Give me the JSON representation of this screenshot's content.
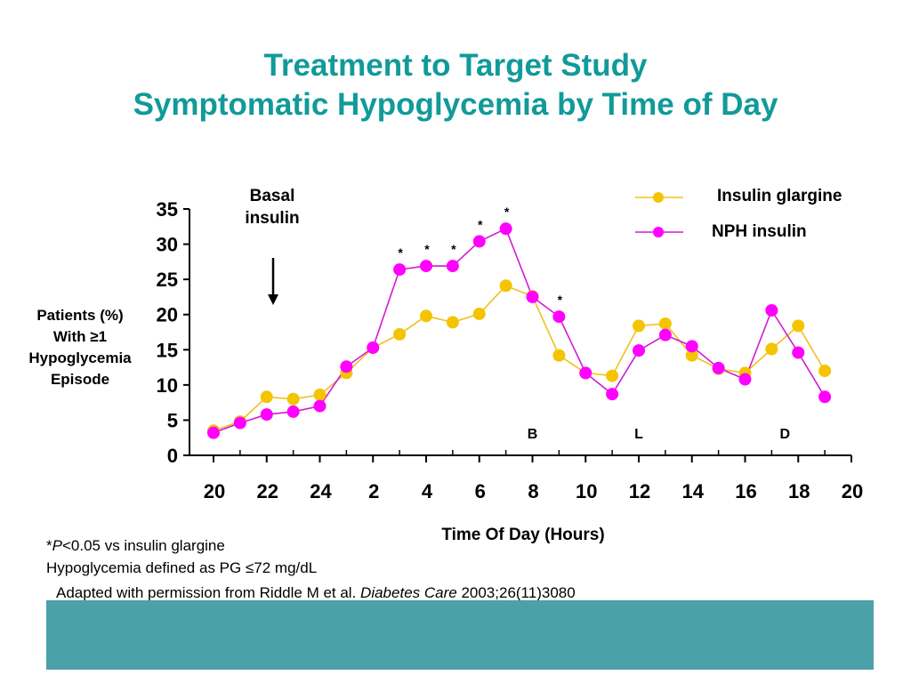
{
  "title_lines": [
    "Treatment to Target Study",
    "Symptomatic Hypoglycemia by Time of Day"
  ],
  "annotation_basal": [
    "Basal",
    "insulin"
  ],
  "footnotes": {
    "pvalue_star": "*",
    "pvalue_p": "P",
    "pvalue_rest": "<0.05 vs insulin glargine",
    "defined": "Hypoglycemia defined as PG ≤72 mg/dL",
    "source_pre": "Adapted with permission from Riddle M et al. ",
    "source_journal": "Diabetes Care",
    "source_post": " 2003;26(11)3080"
  },
  "colors": {
    "title": "#119a9a",
    "glargine": "#f5c400",
    "glargine_line": "#f0c020",
    "nph": "#ff00ff",
    "nph_line": "#d21bd2",
    "band": "#4aa1a8"
  },
  "chart_data": {
    "type": "line",
    "xlabel": "Time Of Day (Hours)",
    "ylabel_lines": [
      "Patients (%)",
      "With ≥1",
      "Hypoglycemia",
      "Episode"
    ],
    "ylim": [
      0,
      35
    ],
    "yticks": [
      "0",
      "5",
      "10",
      "15",
      "20",
      "25",
      "30",
      "35"
    ],
    "xtick_labels": [
      "20",
      "22",
      "24",
      "2",
      "4",
      "6",
      "8",
      "10",
      "12",
      "14",
      "16",
      "18",
      "20"
    ],
    "x_hours_start": 20,
    "x_hours_end": 44,
    "grid": false,
    "legend_position": "top-right",
    "meal_markers": [
      {
        "label": "B",
        "x": 32
      },
      {
        "label": "L",
        "x": 36
      },
      {
        "label": "D",
        "x": 41.5
      }
    ],
    "series": [
      {
        "name": "Insulin glargine",
        "color": "#f5c400",
        "x": [
          20,
          21,
          22,
          23,
          24,
          25,
          26,
          27,
          28,
          29,
          30,
          31,
          32,
          33,
          34,
          35,
          36,
          37,
          38,
          39,
          40,
          41,
          42,
          43
        ],
        "y": [
          3.5,
          4.8,
          8.3,
          8.0,
          8.6,
          11.7,
          15.3,
          17.2,
          19.8,
          18.9,
          20.1,
          24.1,
          22.6,
          14.2,
          11.7,
          11.3,
          18.4,
          18.7,
          14.2,
          12.3,
          11.7,
          15.1,
          18.4,
          12.0
        ]
      },
      {
        "name": "NPH insulin",
        "color": "#ff00ff",
        "x": [
          20,
          21,
          22,
          23,
          24,
          25,
          26,
          27,
          28,
          29,
          30,
          31,
          32,
          33,
          34,
          35,
          36,
          37,
          38,
          39,
          40,
          41,
          42,
          43
        ],
        "y": [
          3.2,
          4.6,
          5.8,
          6.2,
          7.0,
          12.6,
          15.3,
          26.4,
          26.9,
          26.9,
          30.4,
          32.2,
          22.5,
          19.7,
          11.7,
          8.7,
          14.9,
          17.1,
          15.5,
          12.4,
          10.8,
          20.6,
          14.6,
          8.3
        ]
      }
    ],
    "significant_points": {
      "series": "NPH insulin",
      "x": [
        27,
        28,
        29,
        30,
        31,
        33
      ],
      "marker": "*"
    }
  }
}
